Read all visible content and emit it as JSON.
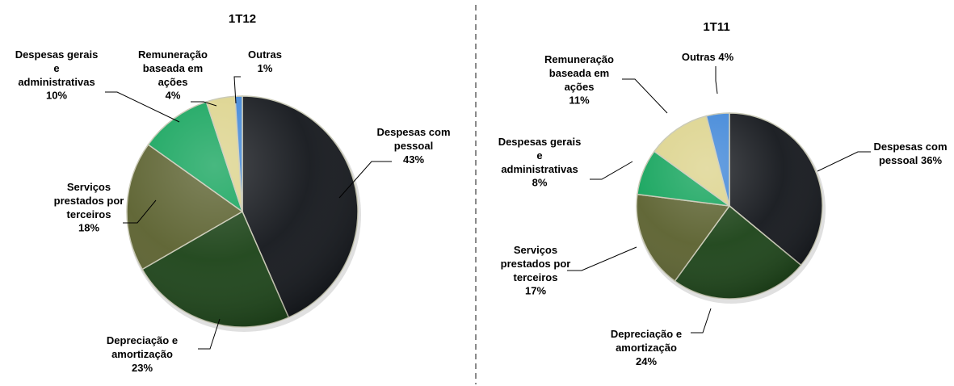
{
  "chart_data": [
    {
      "type": "pie",
      "title": "1T12",
      "series": [
        {
          "name": "Despesas com pessoal",
          "label": [
            "Despesas com",
            "pessoal",
            "43%"
          ],
          "value": 43,
          "color": "#15181d"
        },
        {
          "name": "Depreciação e amortização",
          "label": [
            "Depreciação e",
            "amortização",
            "23%"
          ],
          "value": 23,
          "color": "#1d4419"
        },
        {
          "name": "Serviços prestados por terceiros",
          "label": [
            "Serviços",
            "prestados por",
            "terceiros",
            "18%"
          ],
          "value": 18,
          "color": "#5c6230"
        },
        {
          "name": "Despesas gerais e administrativas",
          "label": [
            "Despesas gerais",
            "e",
            "administrativas",
            "10%"
          ],
          "value": 10,
          "color": "#14a45c"
        },
        {
          "name": "Remuneração baseada em ações",
          "label": [
            "Remuneração",
            "baseada em",
            "ações",
            "4%"
          ],
          "value": 4,
          "color": "#dcd38c"
        },
        {
          "name": "Outras",
          "label": [
            "Outras",
            "1%"
          ],
          "value": 1,
          "color": "#3f86d8"
        }
      ]
    },
    {
      "type": "pie",
      "title": "1T11",
      "series": [
        {
          "name": "Despesas com pessoal",
          "label": [
            "Despesas com",
            "pessoal 36%"
          ],
          "value": 36,
          "color": "#15181d"
        },
        {
          "name": "Depreciação e amortização",
          "label": [
            "Depreciação e",
            "amortização",
            "24%"
          ],
          "value": 24,
          "color": "#1d4419"
        },
        {
          "name": "Serviços prestados por terceiros",
          "label": [
            "Serviços",
            "prestados por",
            "terceiros",
            "17%"
          ],
          "value": 17,
          "color": "#5c6230"
        },
        {
          "name": "Despesas gerais e administrativas",
          "label": [
            "Despesas gerais",
            "e",
            "administrativas",
            "8%"
          ],
          "value": 8,
          "color": "#14a45c"
        },
        {
          "name": "Remuneração baseada em ações",
          "label": [
            "Remuneração",
            "baseada em",
            "ações",
            "11%"
          ],
          "value": 11,
          "color": "#dcd38c"
        },
        {
          "name": "Outras",
          "label": [
            "Outras 4%"
          ],
          "value": 4,
          "color": "#3f86d8"
        }
      ]
    }
  ]
}
